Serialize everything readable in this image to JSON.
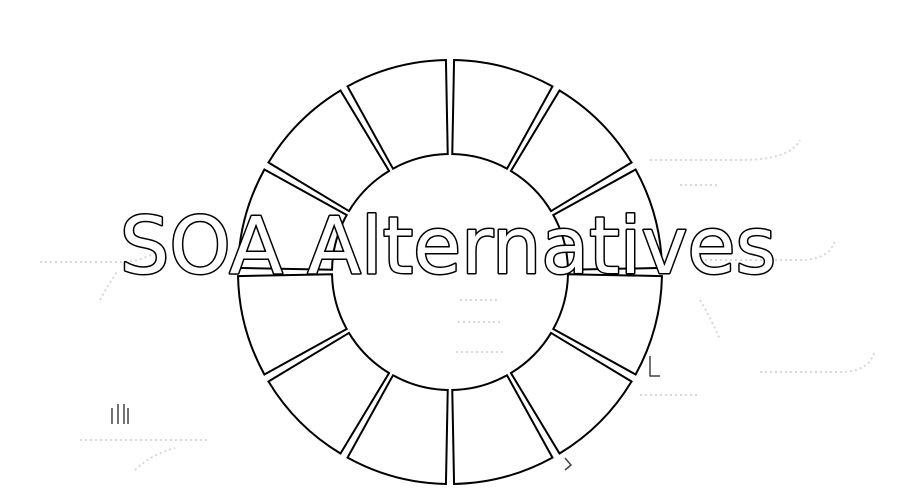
{
  "title": "SOA Alternatives",
  "ring": {
    "segment_count": 12,
    "stroke_color": "#000000",
    "fill_color": "#ffffff"
  },
  "title_style": {
    "fill_color": "#ffffff",
    "stroke_color": "#000000"
  }
}
